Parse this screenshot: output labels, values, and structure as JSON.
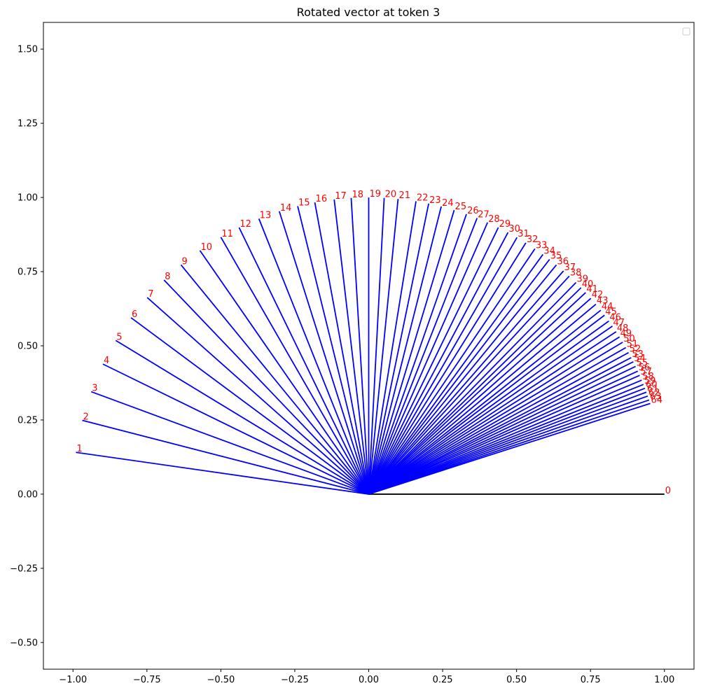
{
  "chart_data": {
    "type": "line",
    "title": "Rotated vector at token 3",
    "xlabel": "",
    "ylabel": "",
    "xlim": [
      -1.1,
      1.1
    ],
    "ylim": [
      -0.59,
      1.59
    ],
    "x_ticks": [
      "−1.00",
      "−0.75",
      "−0.50",
      "−0.25",
      "0.00",
      "0.25",
      "0.50",
      "0.75",
      "1.00"
    ],
    "y_ticks": [
      "−0.50",
      "−0.25",
      "0.00",
      "0.25",
      "0.50",
      "0.75",
      "1.00",
      "1.25",
      "1.50"
    ],
    "grid": false,
    "legend": "top-right (empty)",
    "origin": [
      0,
      0
    ],
    "reference_vector": {
      "label": "0",
      "x": 1.0,
      "y": 0.0,
      "color": "#000000"
    },
    "vector_color": "#0000ff",
    "label_color": "#ff0000",
    "rotation_angles_deg": [
      171.9,
      165.6,
      159.8,
      154.0,
      148.8,
      143.5,
      138.5,
      133.8,
      129.4,
      124.8,
      120.0,
      116.0,
      111.8,
      107.6,
      103.9,
      100.5,
      96.7,
      93.4,
      90.0,
      87.0,
      84.3,
      80.8,
      78.3,
      75.8,
      73.2,
      70.7,
      68.5,
      66.3,
      64.0,
      61.9,
      59.9,
      57.9,
      55.8,
      53.9,
      52.3,
      50.6,
      48.8,
      47.3,
      45.5,
      44.1,
      42.8,
      41.3,
      39.8,
      38.3,
      37.1,
      35.7,
      34.5,
      33.2,
      32.0,
      30.8,
      29.6,
      28.5,
      27.4,
      26.5,
      25.5,
      24.5,
      23.6,
      22.6,
      21.7,
      20.9,
      20.1,
      19.3,
      18.5,
      17.8
    ]
  }
}
